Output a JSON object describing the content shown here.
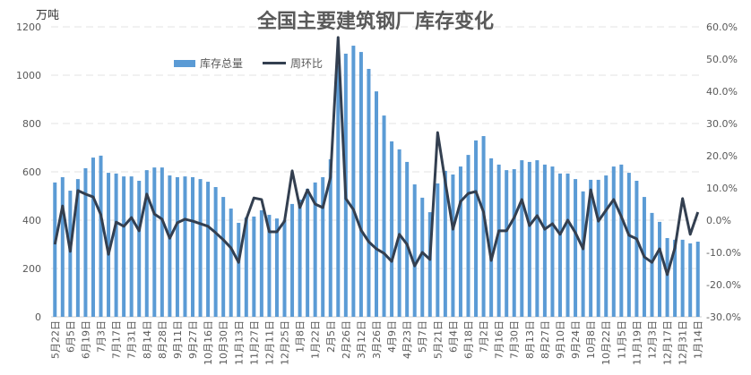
{
  "chart_data": {
    "type": "bar+line",
    "title": "全国主要建筑钢厂库存变化",
    "ylabel_left": "万吨",
    "ylim_left": [
      0,
      1200
    ],
    "yticks_left": [
      "0",
      "200",
      "400",
      "600",
      "800",
      "1000",
      "1200"
    ],
    "ylim_right": [
      -30,
      60
    ],
    "yticks_right": [
      "-30.0%",
      "-20.0%",
      "-10.0%",
      "0.0%",
      "10.0%",
      "20.0%",
      "30.0%",
      "40.0%",
      "50.0%",
      "60.0%"
    ],
    "grid": true,
    "legend_position": "top-left",
    "xtick_labels": [
      "5月22日",
      "6月5日",
      "6月19日",
      "7月3日",
      "7月17日",
      "7月31日",
      "8月14日",
      "8月28日",
      "9月11日",
      "9月27日",
      "10月16日",
      "10月30日",
      "11月13日",
      "11月27日",
      "12月11日",
      "12月25日",
      "1月8日",
      "1月22日",
      "2月5日",
      "2月26日",
      "3月12日",
      "3月26日",
      "4月9日",
      "4月23日",
      "5月7日",
      "5月21日",
      "6月4日",
      "6月18日",
      "7月2日",
      "7月16日",
      "7月30日",
      "8月13日",
      "8月27日",
      "9月10日",
      "9月24日",
      "10月8日",
      "10月22日",
      "11月5日",
      "11月19日",
      "12月3日",
      "12月17日",
      "12月31日",
      "1月14日"
    ],
    "series": [
      {
        "name": "库存总量",
        "type": "bar",
        "axis": "left",
        "color": "#5B9BD5",
        "values": [
          556,
          578,
          522,
          570,
          615,
          659,
          667,
          596,
          593,
          581,
          581,
          563,
          607,
          618,
          618,
          585,
          578,
          581,
          578,
          570,
          559,
          537,
          496,
          448,
          389,
          411,
          415,
          441,
          422,
          407,
          400,
          467,
          485,
          530,
          556,
          578,
          652,
          1040,
          1089,
          1122,
          1096,
          1026,
          933,
          833,
          726,
          693,
          641,
          548,
          493,
          433,
          552,
          604,
          589,
          622,
          670,
          730,
          748,
          656,
          630,
          607,
          611,
          648,
          641,
          648,
          630,
          622,
          593,
          593,
          570,
          519,
          567,
          567,
          585,
          622,
          630,
          596,
          563,
          496,
          430,
          393,
          326,
          319,
          319,
          304,
          311
        ]
      },
      {
        "name": "周环比",
        "type": "line",
        "axis": "right",
        "color": "#333F50",
        "values": [
          -7.5,
          4.4,
          -9.7,
          9.2,
          8.1,
          7.2,
          1.7,
          -10.6,
          -0.6,
          -1.9,
          0.8,
          -3.3,
          8.1,
          1.9,
          0.3,
          -5.6,
          -0.8,
          0.3,
          -0.3,
          -1.1,
          -1.9,
          -3.9,
          -6.1,
          -8.6,
          -13.1,
          0.3,
          6.9,
          6.4,
          -3.6,
          -3.6,
          -0.3,
          15.3,
          3.9,
          9.4,
          5.0,
          3.9,
          13.3,
          56.7,
          6.7,
          3.3,
          -3.1,
          -6.7,
          -8.9,
          -10.3,
          -12.8,
          -4.4,
          -7.5,
          -14.2,
          -10.0,
          -12.2,
          27.2,
          11.9,
          -2.8,
          5.8,
          8.3,
          8.9,
          2.5,
          -12.5,
          -3.3,
          -3.3,
          0.8,
          6.4,
          -1.7,
          1.4,
          -2.8,
          -1.1,
          -4.4,
          0.0,
          -3.9,
          -8.9,
          9.4,
          -0.3,
          3.1,
          6.4,
          1.1,
          -4.7,
          -5.8,
          -11.4,
          -13.1,
          -8.9,
          -16.9,
          -8.6,
          6.7,
          -4.4,
          2.5
        ]
      }
    ]
  }
}
